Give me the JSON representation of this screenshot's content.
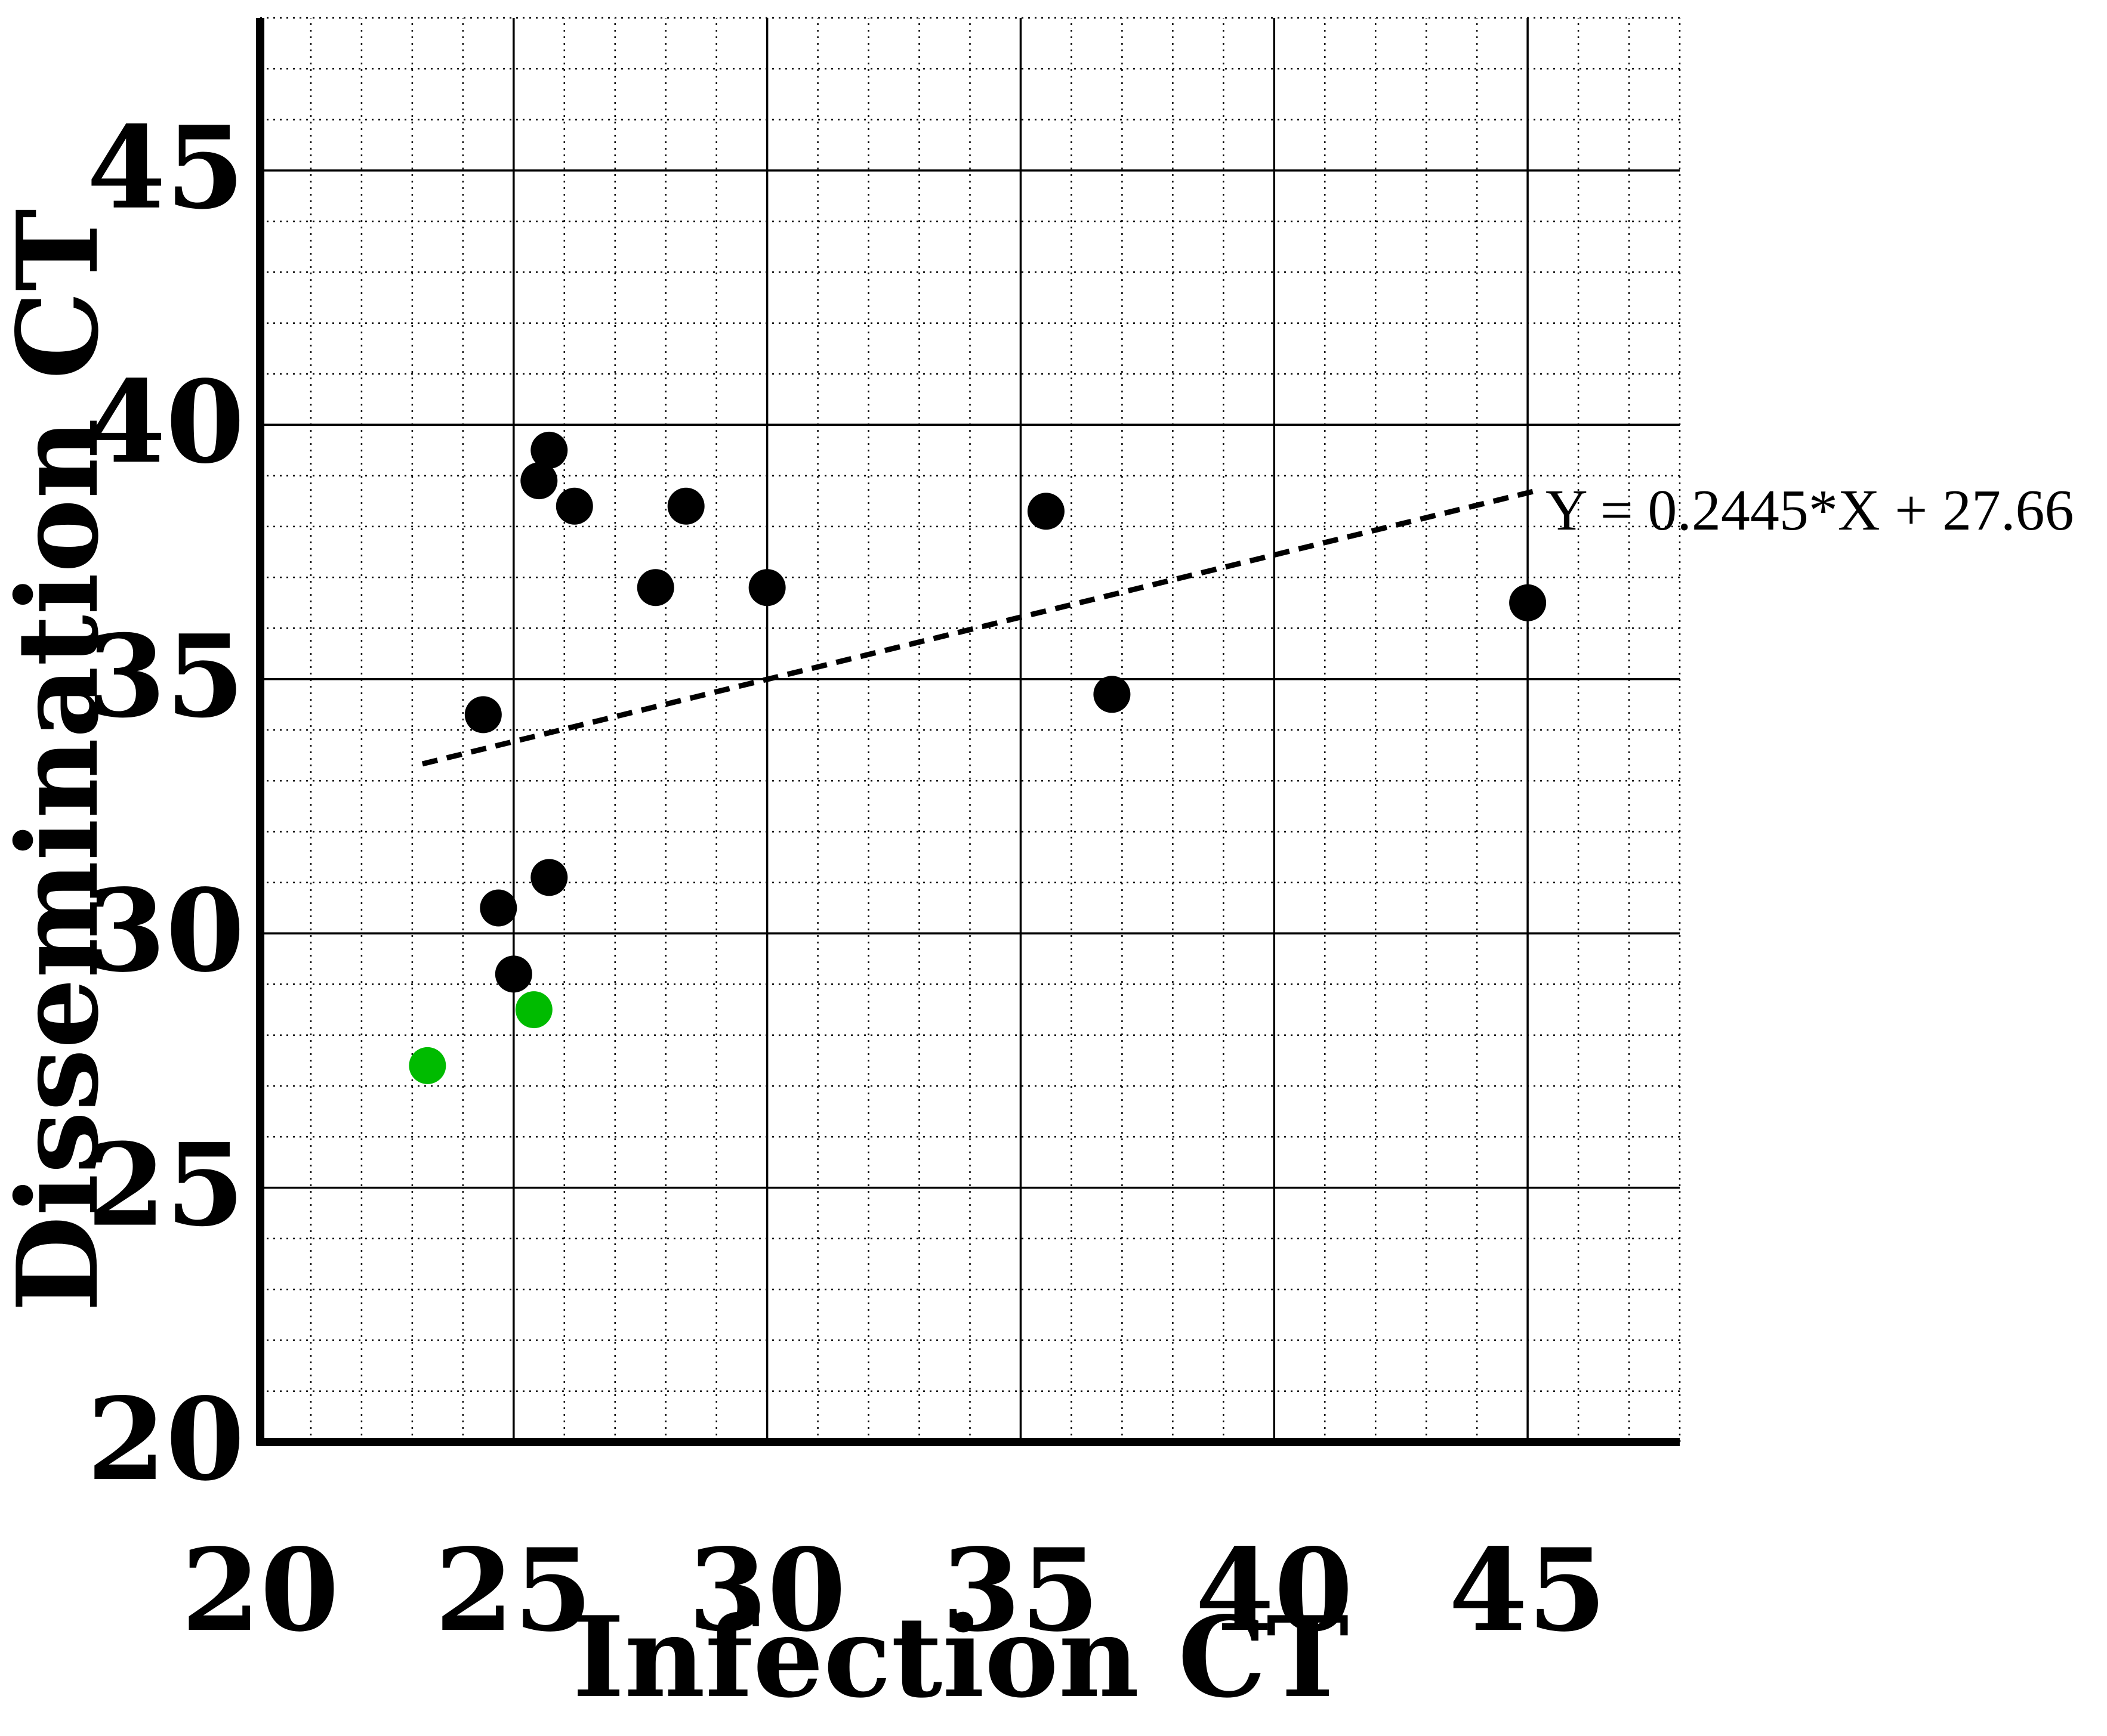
{
  "chart_data": {
    "type": "scatter",
    "xlabel": "Infection CT",
    "ylabel": "Dissemination CT",
    "xlim": [
      20,
      48
    ],
    "ylim": [
      20,
      48
    ],
    "x_ticks": [
      "20",
      "25",
      "30",
      "35",
      "40",
      "45"
    ],
    "y_ticks": [
      "20",
      "25",
      "30",
      "35",
      "40",
      "45"
    ],
    "grid": {
      "major_step": 5,
      "minor_step": 1,
      "major_style": "solid",
      "minor_style": "dotted"
    },
    "colors": {
      "series_main": "#000000",
      "series_highlight": "#00bb00",
      "axis": "#000000",
      "grid": "#000000"
    },
    "series": [
      {
        "name": "main",
        "color": "#000000",
        "points": [
          {
            "x": 25.7,
            "y": 39.5
          },
          {
            "x": 25.5,
            "y": 38.9
          },
          {
            "x": 26.2,
            "y": 38.4
          },
          {
            "x": 28.4,
            "y": 38.4
          },
          {
            "x": 35.5,
            "y": 38.3
          },
          {
            "x": 27.8,
            "y": 36.8
          },
          {
            "x": 30.0,
            "y": 36.8
          },
          {
            "x": 45.0,
            "y": 36.5
          },
          {
            "x": 36.8,
            "y": 34.7
          },
          {
            "x": 24.4,
            "y": 34.3
          },
          {
            "x": 25.7,
            "y": 31.1
          },
          {
            "x": 24.7,
            "y": 30.5
          },
          {
            "x": 25.0,
            "y": 29.2
          }
        ]
      },
      {
        "name": "highlight",
        "color": "#00bb00",
        "points": [
          {
            "x": 25.4,
            "y": 28.5
          },
          {
            "x": 23.3,
            "y": 27.4
          }
        ]
      }
    ],
    "trendline": {
      "equation": "Y = 0.2445*X + 27.66",
      "slope": 0.2445,
      "intercept": 27.66,
      "x_range": [
        23.2,
        45.2
      ],
      "style": "dashed"
    }
  }
}
